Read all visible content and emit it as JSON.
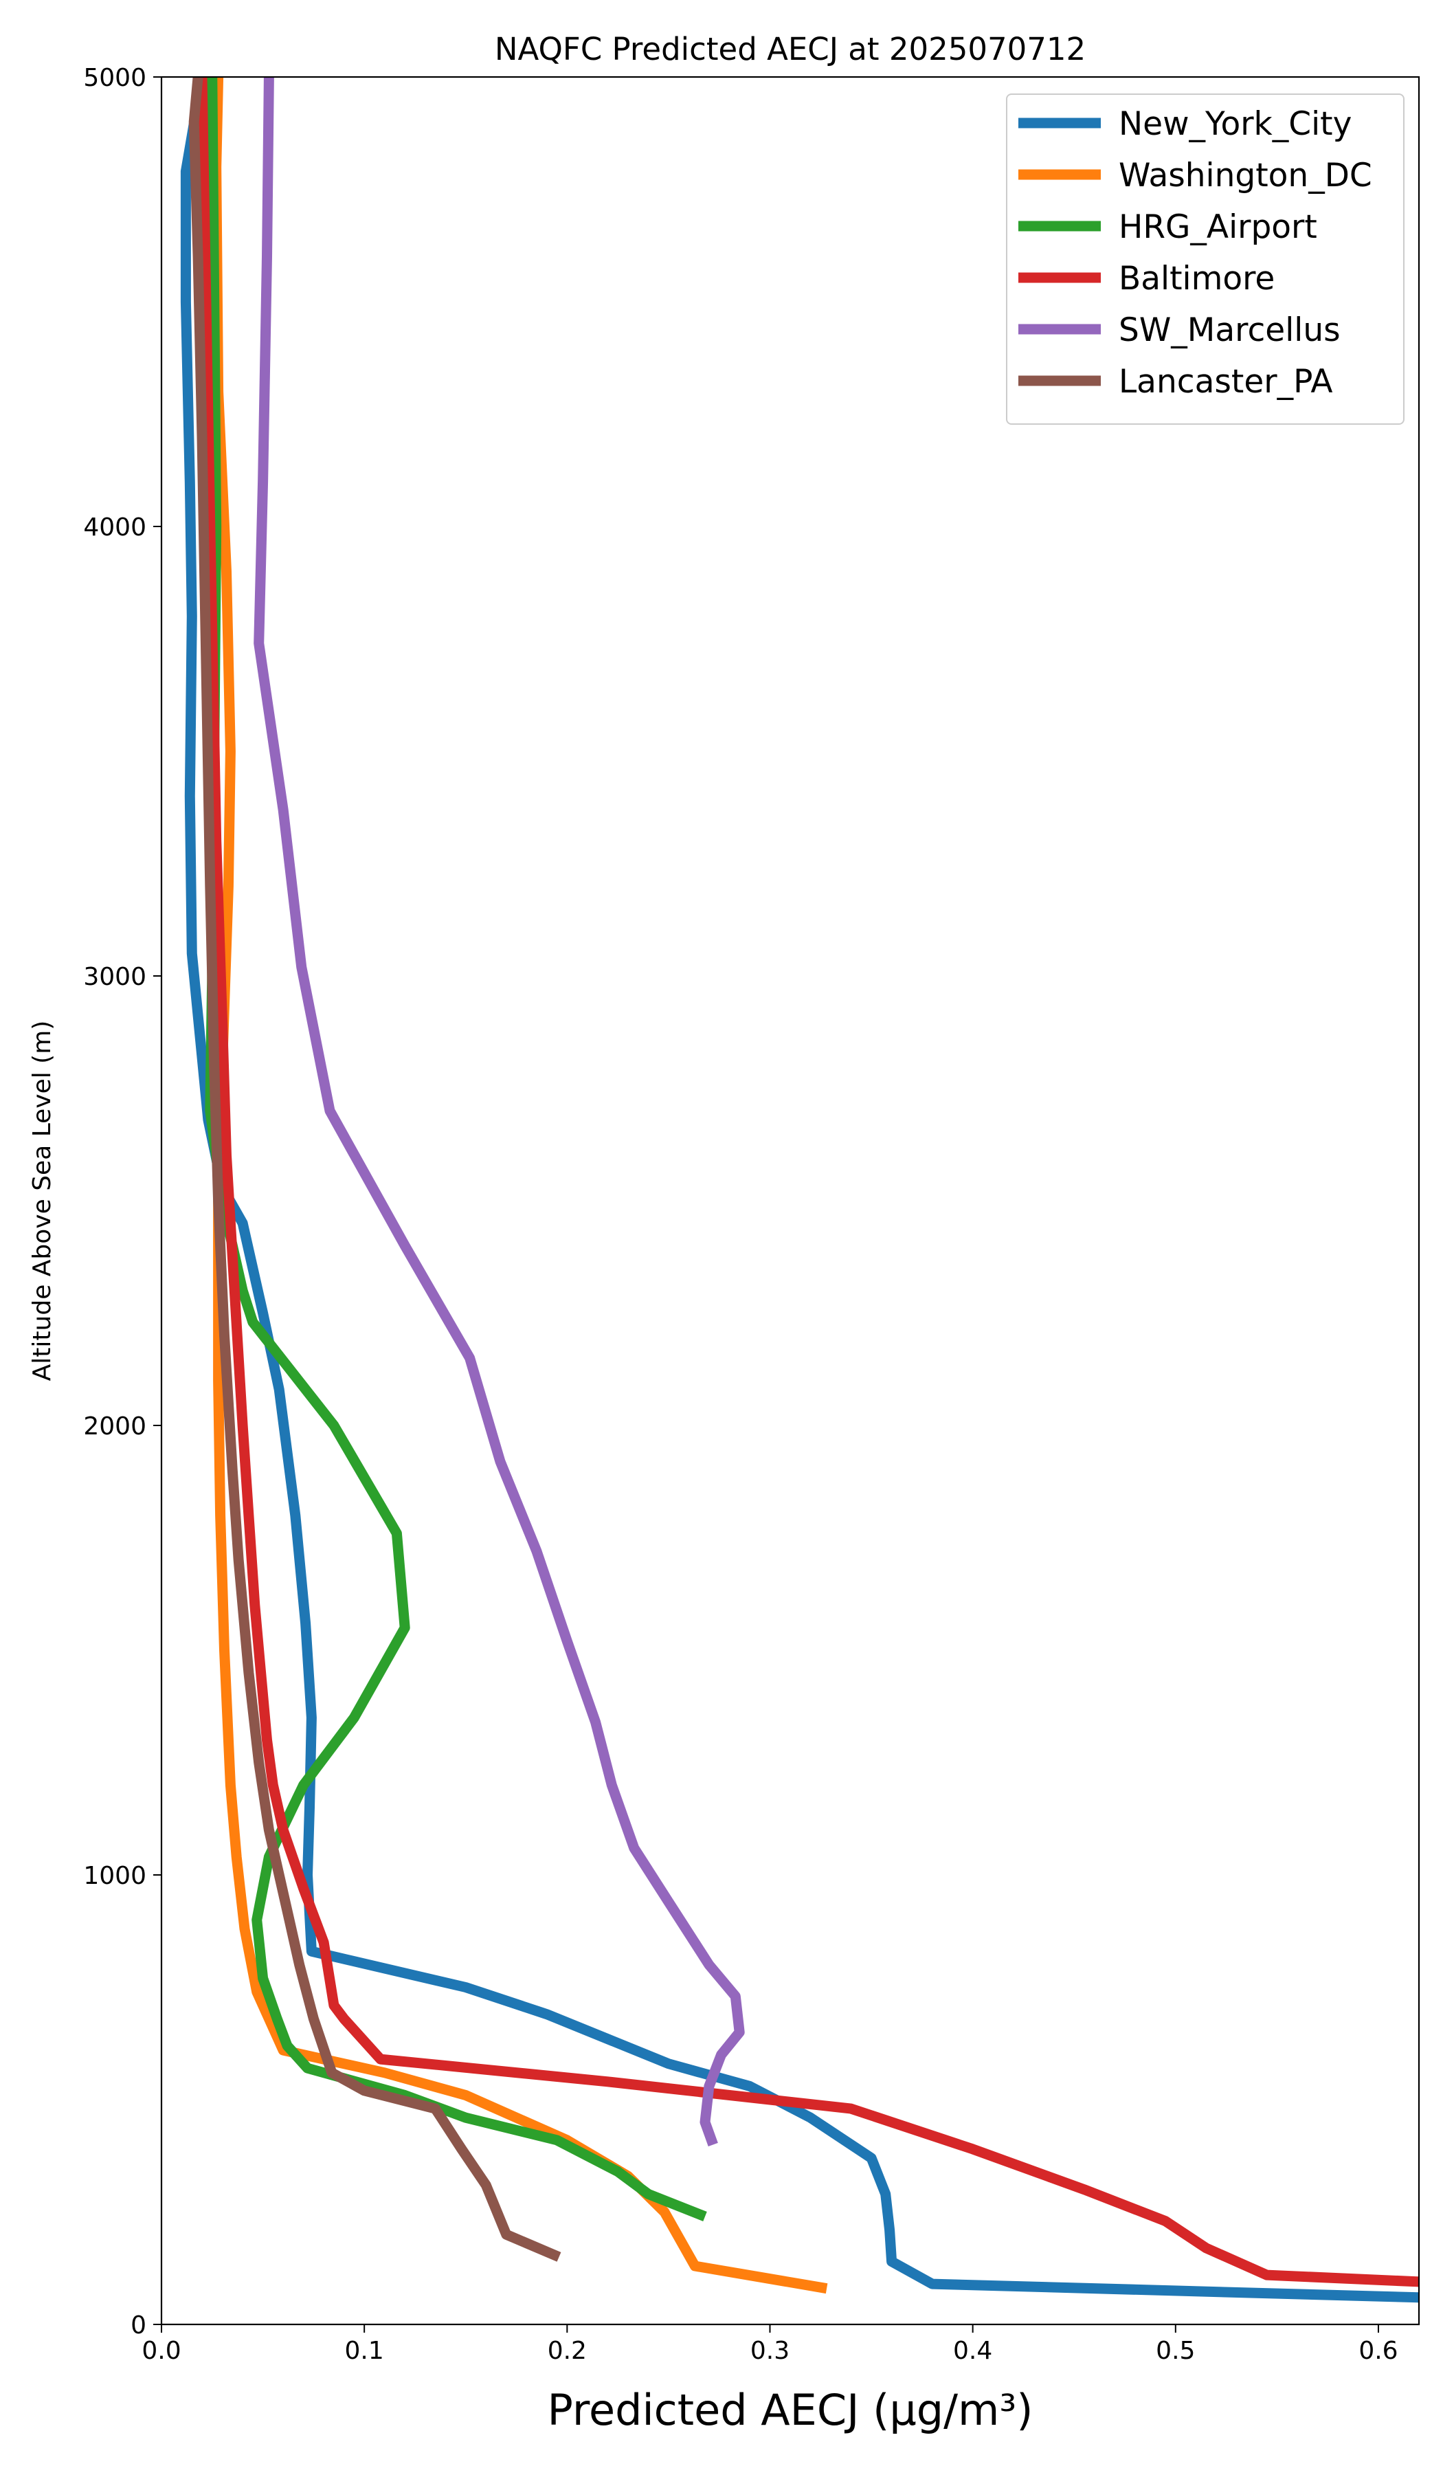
{
  "chart_data": {
    "type": "line",
    "title": "NAQFC Predicted AECJ at 2025070712",
    "xlabel": "Predicted AECJ (μg/m³)",
    "ylabel": "Altitude Above Sea Level (m)",
    "xlim": [
      0.0,
      0.62
    ],
    "ylim": [
      0,
      5000
    ],
    "xticks": [
      "0.0",
      "0.1",
      "0.2",
      "0.3",
      "0.4",
      "0.5",
      "0.6"
    ],
    "yticks": [
      "0",
      "1000",
      "2000",
      "3000",
      "4000",
      "5000"
    ],
    "grid": false,
    "legend": "top-right",
    "series": [
      {
        "name": "New_York_City",
        "color": "#1f77b4",
        "points": [
          [
            0.62,
            60
          ],
          [
            0.38,
            90
          ],
          [
            0.36,
            140
          ],
          [
            0.359,
            210
          ],
          [
            0.357,
            290
          ],
          [
            0.35,
            370
          ],
          [
            0.32,
            460
          ],
          [
            0.29,
            530
          ],
          [
            0.25,
            580
          ],
          [
            0.19,
            690
          ],
          [
            0.15,
            750
          ],
          [
            0.074,
            830
          ],
          [
            0.072,
            1000
          ],
          [
            0.073,
            1150
          ],
          [
            0.074,
            1350
          ],
          [
            0.071,
            1560
          ],
          [
            0.066,
            1800
          ],
          [
            0.058,
            2080
          ],
          [
            0.05,
            2250
          ],
          [
            0.04,
            2450
          ],
          [
            0.03,
            2530
          ],
          [
            0.023,
            2680
          ],
          [
            0.015,
            3050
          ],
          [
            0.014,
            3400
          ],
          [
            0.015,
            3800
          ],
          [
            0.014,
            4100
          ],
          [
            0.012,
            4500
          ],
          [
            0.012,
            4790
          ],
          [
            0.02,
            5000
          ]
        ]
      },
      {
        "name": "Washington_DC",
        "color": "#ff7f0e",
        "points": [
          [
            0.328,
            80
          ],
          [
            0.263,
            130
          ],
          [
            0.248,
            250
          ],
          [
            0.23,
            330
          ],
          [
            0.2,
            410
          ],
          [
            0.15,
            510
          ],
          [
            0.11,
            560
          ],
          [
            0.06,
            610
          ],
          [
            0.047,
            740
          ],
          [
            0.041,
            880
          ],
          [
            0.037,
            1040
          ],
          [
            0.034,
            1200
          ],
          [
            0.031,
            1500
          ],
          [
            0.029,
            1800
          ],
          [
            0.028,
            2100
          ],
          [
            0.028,
            2500
          ],
          [
            0.03,
            2800
          ],
          [
            0.033,
            3200
          ],
          [
            0.034,
            3500
          ],
          [
            0.032,
            3900
          ],
          [
            0.028,
            4300
          ],
          [
            0.027,
            4800
          ],
          [
            0.028,
            5000
          ]
        ]
      },
      {
        "name": "HRG_Airport",
        "color": "#2ca02c",
        "points": [
          [
            0.268,
            240
          ],
          [
            0.24,
            290
          ],
          [
            0.225,
            340
          ],
          [
            0.195,
            410
          ],
          [
            0.15,
            460
          ],
          [
            0.12,
            510
          ],
          [
            0.072,
            570
          ],
          [
            0.062,
            620
          ],
          [
            0.057,
            680
          ],
          [
            0.05,
            770
          ],
          [
            0.047,
            900
          ],
          [
            0.053,
            1040
          ],
          [
            0.07,
            1200
          ],
          [
            0.095,
            1350
          ],
          [
            0.12,
            1550
          ],
          [
            0.116,
            1760
          ],
          [
            0.085,
            2000
          ],
          [
            0.045,
            2230
          ],
          [
            0.04,
            2300
          ],
          [
            0.03,
            2500
          ],
          [
            0.024,
            2700
          ],
          [
            0.025,
            3000
          ],
          [
            0.026,
            3500
          ],
          [
            0.027,
            4000
          ],
          [
            0.026,
            4500
          ],
          [
            0.025,
            5000
          ]
        ]
      },
      {
        "name": "Baltimore",
        "color": "#d62728",
        "points": [
          [
            0.62,
            95
          ],
          [
            0.545,
            110
          ],
          [
            0.515,
            170
          ],
          [
            0.495,
            230
          ],
          [
            0.455,
            300
          ],
          [
            0.4,
            390
          ],
          [
            0.34,
            480
          ],
          [
            0.3,
            500
          ],
          [
            0.22,
            540
          ],
          [
            0.108,
            590
          ],
          [
            0.09,
            680
          ],
          [
            0.085,
            710
          ],
          [
            0.08,
            850
          ],
          [
            0.07,
            970
          ],
          [
            0.06,
            1100
          ],
          [
            0.055,
            1200
          ],
          [
            0.052,
            1300
          ],
          [
            0.049,
            1450
          ],
          [
            0.046,
            1600
          ],
          [
            0.043,
            1800
          ],
          [
            0.04,
            2000
          ],
          [
            0.036,
            2300
          ],
          [
            0.032,
            2600
          ],
          [
            0.03,
            2900
          ],
          [
            0.027,
            3300
          ],
          [
            0.024,
            4000
          ],
          [
            0.022,
            4500
          ],
          [
            0.02,
            5000
          ]
        ]
      },
      {
        "name": "SW_Marcellus",
        "color": "#9467bd",
        "points": [
          [
            0.272,
            400
          ],
          [
            0.268,
            450
          ],
          [
            0.27,
            530
          ],
          [
            0.276,
            600
          ],
          [
            0.285,
            650
          ],
          [
            0.283,
            730
          ],
          [
            0.27,
            800
          ],
          [
            0.25,
            940
          ],
          [
            0.233,
            1060
          ],
          [
            0.222,
            1200
          ],
          [
            0.214,
            1340
          ],
          [
            0.2,
            1520
          ],
          [
            0.185,
            1720
          ],
          [
            0.167,
            1920
          ],
          [
            0.152,
            2150
          ],
          [
            0.12,
            2400
          ],
          [
            0.083,
            2700
          ],
          [
            0.069,
            3020
          ],
          [
            0.06,
            3370
          ],
          [
            0.048,
            3740
          ],
          [
            0.05,
            4100
          ],
          [
            0.052,
            4600
          ],
          [
            0.053,
            5000
          ]
        ]
      },
      {
        "name": "Lancaster_PA",
        "color": "#8c564b",
        "points": [
          [
            0.196,
            150
          ],
          [
            0.17,
            200
          ],
          [
            0.16,
            310
          ],
          [
            0.148,
            390
          ],
          [
            0.135,
            480
          ],
          [
            0.1,
            520
          ],
          [
            0.084,
            560
          ],
          [
            0.075,
            680
          ],
          [
            0.068,
            800
          ],
          [
            0.063,
            900
          ],
          [
            0.058,
            1000
          ],
          [
            0.053,
            1100
          ],
          [
            0.048,
            1250
          ],
          [
            0.043,
            1450
          ],
          [
            0.038,
            1700
          ],
          [
            0.035,
            1900
          ],
          [
            0.031,
            2200
          ],
          [
            0.028,
            2500
          ],
          [
            0.026,
            2800
          ],
          [
            0.024,
            3200
          ],
          [
            0.022,
            3700
          ],
          [
            0.02,
            4200
          ],
          [
            0.018,
            4600
          ],
          [
            0.016,
            4900
          ],
          [
            0.018,
            5000
          ]
        ]
      }
    ]
  }
}
